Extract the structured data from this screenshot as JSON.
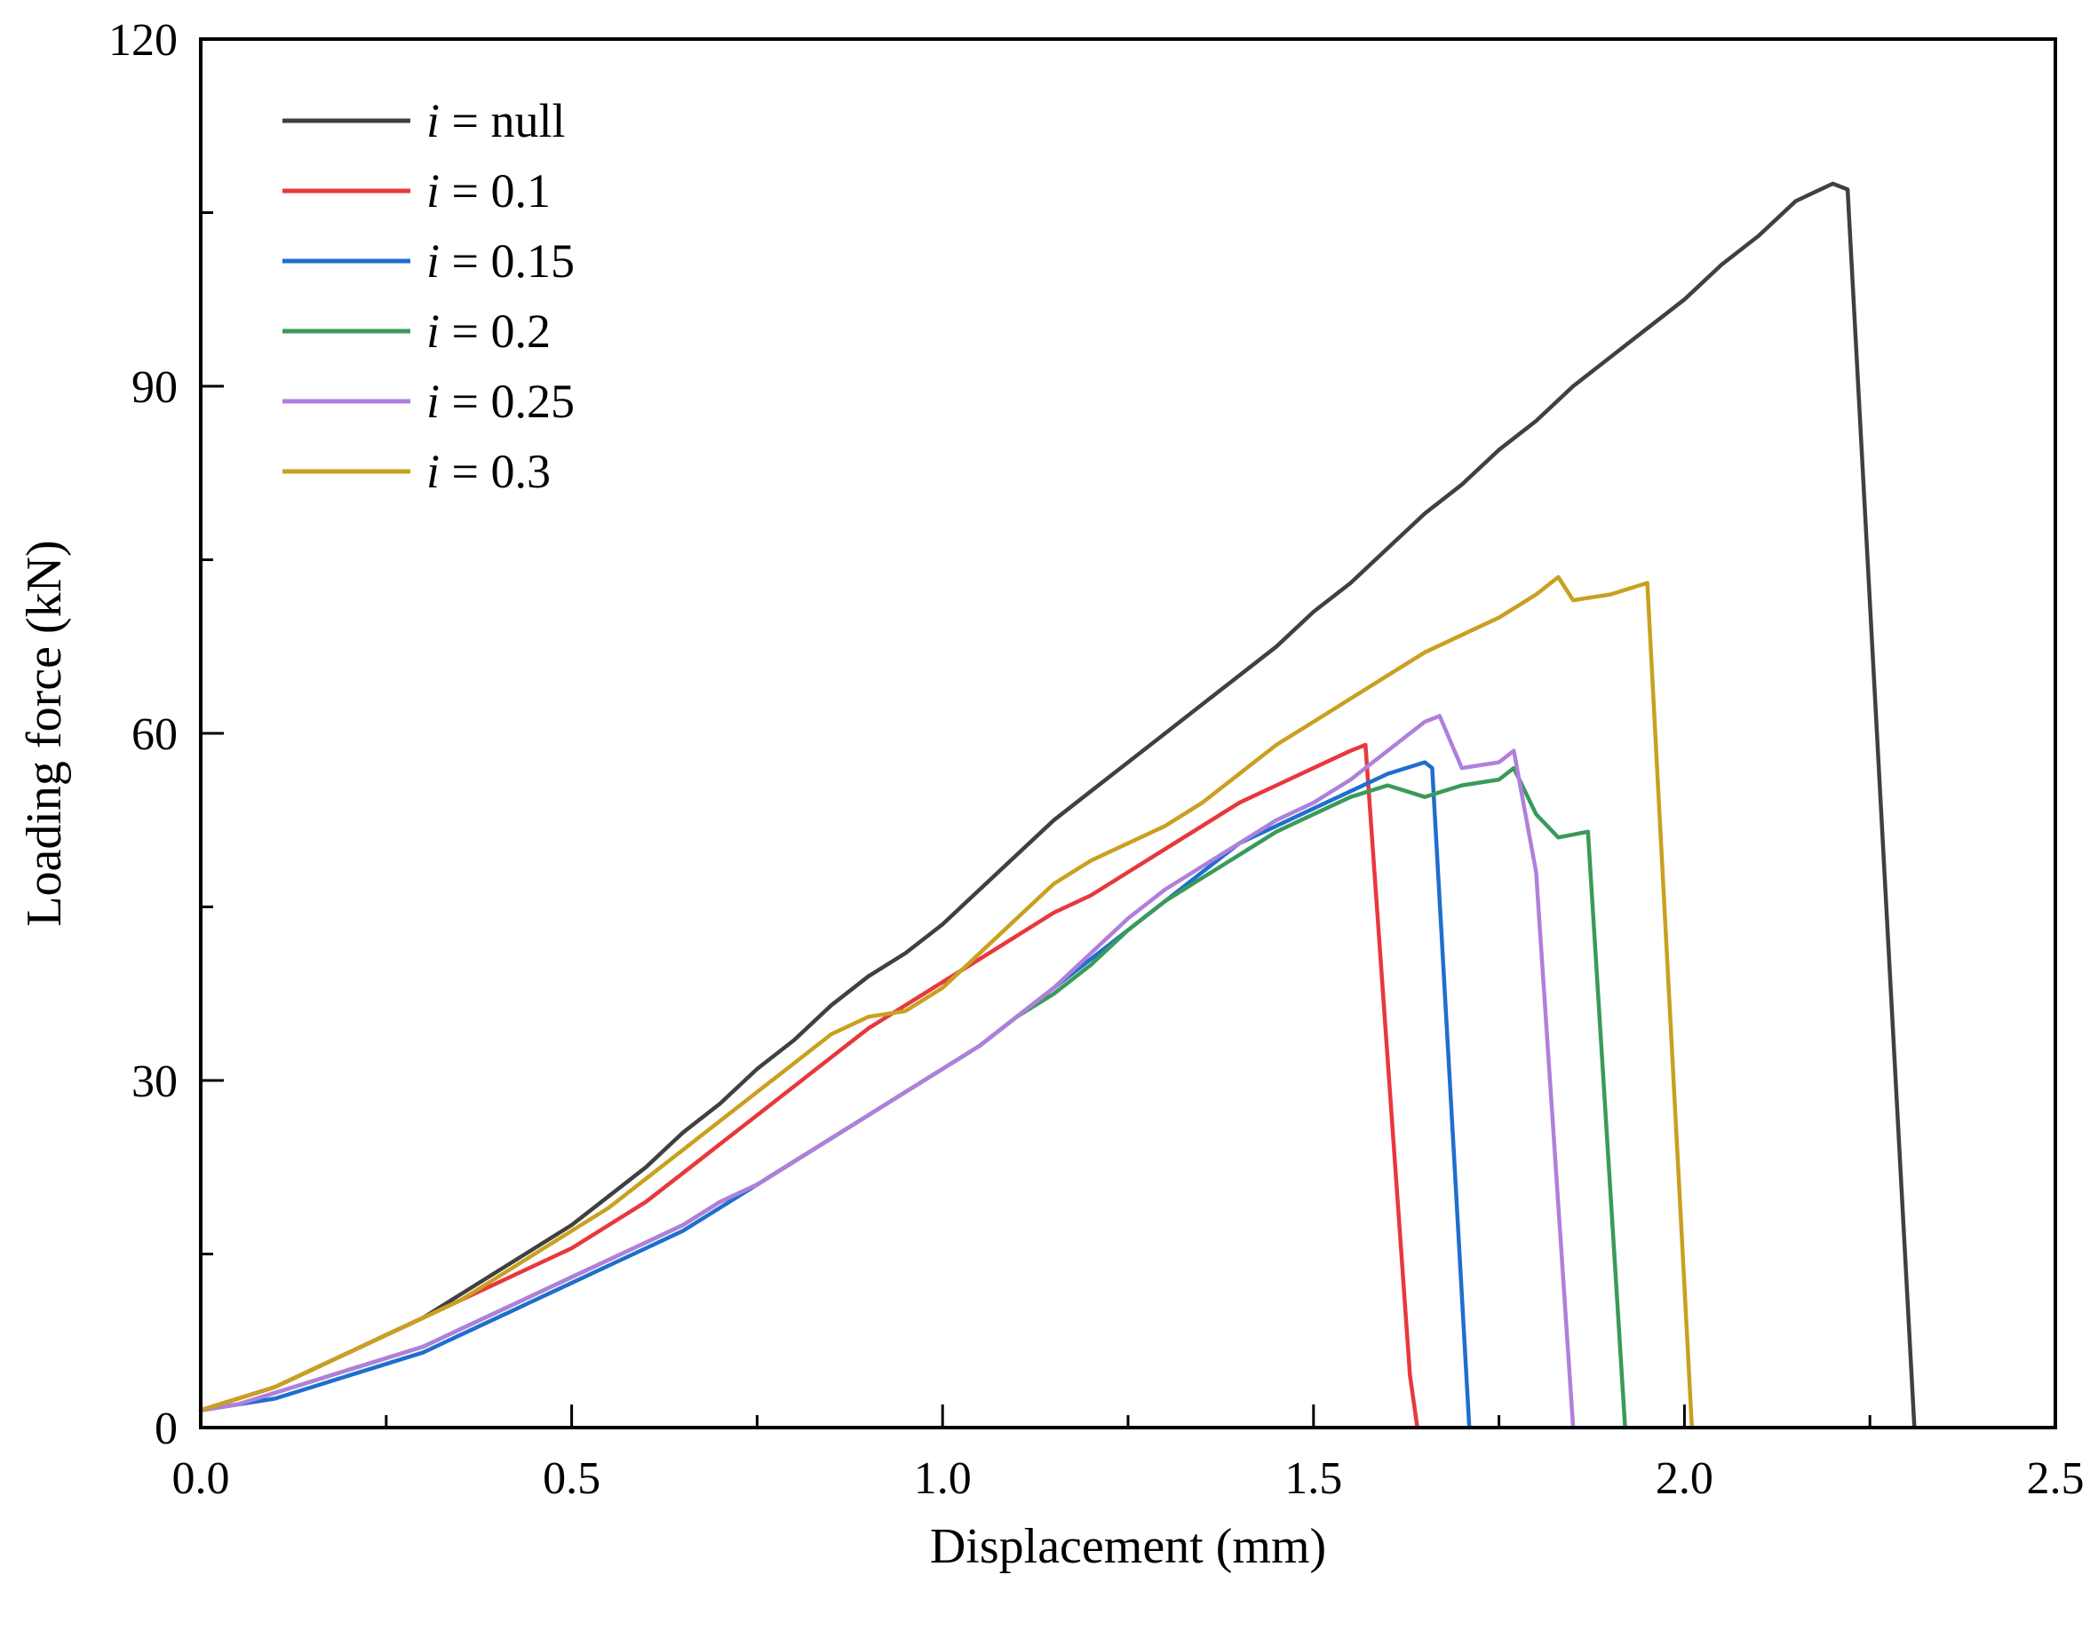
{
  "chart_data": {
    "type": "line",
    "title": "",
    "xlabel": "Displacement (mm)",
    "ylabel": "Loading force (kN)",
    "xlim": [
      0.0,
      2.5
    ],
    "ylim": [
      0,
      120
    ],
    "xticks": [
      0.0,
      0.5,
      1.0,
      1.5,
      2.0,
      2.5
    ],
    "xtick_labels": [
      "0.0",
      "0.5",
      "1.0",
      "1.5",
      "2.0",
      "2.5"
    ],
    "yticks": [
      0,
      30,
      60,
      90,
      120
    ],
    "ytick_labels": [
      "0",
      "30",
      "60",
      "90",
      "120"
    ],
    "grid": false,
    "legend_position": "top-left",
    "legend_var": "i",
    "legend_eq": " = ",
    "series": [
      {
        "name": "i = null",
        "value_label": "null",
        "color": "#404040",
        "x": [
          0.0,
          0.05,
          0.1,
          0.15,
          0.2,
          0.25,
          0.3,
          0.35,
          0.4,
          0.45,
          0.5,
          0.55,
          0.6,
          0.65,
          0.7,
          0.75,
          0.8,
          0.85,
          0.9,
          0.95,
          1.0,
          1.05,
          1.1,
          1.15,
          1.2,
          1.25,
          1.3,
          1.35,
          1.4,
          1.45,
          1.5,
          1.55,
          1.6,
          1.65,
          1.7,
          1.75,
          1.8,
          1.85,
          1.9,
          1.95,
          2.0,
          2.05,
          2.1,
          2.15,
          2.2,
          2.22,
          2.31
        ],
        "y": [
          1.5,
          2.5,
          3.5,
          5.0,
          6.5,
          8.0,
          9.5,
          11.5,
          13.5,
          15.5,
          17.5,
          20.0,
          22.5,
          25.5,
          28.0,
          31.0,
          33.5,
          36.5,
          39.0,
          41.0,
          43.5,
          46.5,
          49.5,
          52.5,
          55.0,
          57.5,
          60.0,
          62.5,
          65.0,
          67.5,
          70.5,
          73.0,
          76.0,
          79.0,
          81.5,
          84.5,
          87.0,
          90.0,
          92.5,
          95.0,
          97.5,
          100.5,
          103.0,
          106.0,
          107.5,
          107.0,
          0
        ]
      },
      {
        "name": "i = 0.1",
        "value_label": "0.1",
        "color": "#e8383d",
        "x": [
          0.0,
          0.05,
          0.1,
          0.15,
          0.2,
          0.25,
          0.3,
          0.35,
          0.4,
          0.45,
          0.5,
          0.55,
          0.6,
          0.65,
          0.7,
          0.75,
          0.8,
          0.85,
          0.9,
          0.95,
          1.0,
          1.05,
          1.1,
          1.15,
          1.2,
          1.25,
          1.3,
          1.35,
          1.4,
          1.45,
          1.5,
          1.55,
          1.57,
          1.63,
          1.64
        ],
        "y": [
          1.5,
          2.5,
          3.5,
          5.0,
          6.5,
          8.0,
          9.5,
          11.0,
          12.5,
          14.0,
          15.5,
          17.5,
          19.5,
          22.0,
          24.5,
          27.0,
          29.5,
          32.0,
          34.5,
          36.5,
          38.5,
          40.5,
          42.5,
          44.5,
          46.0,
          48.0,
          50.0,
          52.0,
          54.0,
          55.5,
          57.0,
          58.5,
          59.0,
          4.5,
          0
        ]
      },
      {
        "name": "i = 0.15",
        "value_label": "0.15",
        "color": "#1e6fce",
        "x": [
          0.0,
          0.05,
          0.1,
          0.15,
          0.2,
          0.25,
          0.3,
          0.35,
          0.4,
          0.45,
          0.5,
          0.55,
          0.6,
          0.65,
          0.7,
          0.75,
          0.8,
          0.85,
          0.9,
          0.95,
          1.0,
          1.05,
          1.1,
          1.15,
          1.2,
          1.25,
          1.3,
          1.35,
          1.4,
          1.45,
          1.5,
          1.55,
          1.6,
          1.65,
          1.66,
          1.71
        ],
        "y": [
          1.5,
          2.0,
          2.5,
          3.5,
          4.5,
          5.5,
          6.5,
          8.0,
          9.5,
          11.0,
          12.5,
          14.0,
          15.5,
          17.0,
          19.0,
          21.0,
          23.0,
          25.0,
          27.0,
          29.0,
          31.0,
          33.0,
          35.5,
          38.0,
          40.5,
          43.0,
          45.5,
          48.0,
          50.5,
          52.0,
          53.5,
          55.0,
          56.5,
          57.5,
          57.0,
          0
        ]
      },
      {
        "name": "i = 0.2",
        "value_label": "0.2",
        "color": "#3a9a5a",
        "x": [
          0.0,
          0.05,
          0.1,
          0.15,
          0.2,
          0.25,
          0.3,
          0.35,
          0.4,
          0.45,
          0.5,
          0.55,
          0.6,
          0.65,
          0.7,
          0.75,
          0.8,
          0.85,
          0.9,
          0.95,
          1.0,
          1.05,
          1.1,
          1.15,
          1.2,
          1.25,
          1.3,
          1.35,
          1.4,
          1.45,
          1.5,
          1.55,
          1.6,
          1.65,
          1.7,
          1.75,
          1.77,
          1.8,
          1.83,
          1.87,
          1.92
        ],
        "y": [
          1.5,
          2.0,
          3.0,
          4.0,
          5.0,
          6.0,
          7.0,
          8.5,
          10.0,
          11.5,
          13.0,
          14.5,
          16.0,
          17.5,
          19.5,
          21.0,
          23.0,
          25.0,
          27.0,
          29.0,
          31.0,
          33.0,
          35.5,
          37.5,
          40.0,
          43.0,
          45.5,
          47.5,
          49.5,
          51.5,
          53.0,
          54.5,
          55.5,
          54.5,
          55.5,
          56.0,
          57.0,
          53.0,
          51.0,
          51.5,
          0
        ]
      },
      {
        "name": "i = 0.25",
        "value_label": "0.25",
        "color": "#b07fdc",
        "x": [
          0.0,
          0.05,
          0.1,
          0.15,
          0.2,
          0.25,
          0.3,
          0.35,
          0.4,
          0.45,
          0.5,
          0.55,
          0.6,
          0.65,
          0.7,
          0.75,
          0.8,
          0.85,
          0.9,
          0.95,
          1.0,
          1.05,
          1.1,
          1.15,
          1.2,
          1.25,
          1.3,
          1.35,
          1.4,
          1.45,
          1.5,
          1.55,
          1.6,
          1.65,
          1.67,
          1.7,
          1.75,
          1.77,
          1.8,
          1.85
        ],
        "y": [
          1.5,
          2.0,
          3.0,
          4.0,
          5.0,
          6.0,
          7.0,
          8.5,
          10.0,
          11.5,
          13.0,
          14.5,
          16.0,
          17.5,
          19.5,
          21.0,
          23.0,
          25.0,
          27.0,
          29.0,
          31.0,
          33.0,
          35.5,
          38.0,
          41.0,
          44.0,
          46.5,
          48.5,
          50.5,
          52.5,
          54.0,
          56.0,
          58.5,
          61.0,
          61.5,
          57.0,
          57.5,
          58.5,
          48.0,
          0
        ]
      },
      {
        "name": "i = 0.3",
        "value_label": "0.3",
        "color": "#c9a020",
        "x": [
          0.0,
          0.05,
          0.1,
          0.15,
          0.2,
          0.25,
          0.3,
          0.35,
          0.4,
          0.45,
          0.5,
          0.55,
          0.6,
          0.65,
          0.7,
          0.75,
          0.8,
          0.85,
          0.9,
          0.95,
          1.0,
          1.05,
          1.1,
          1.15,
          1.2,
          1.25,
          1.3,
          1.35,
          1.4,
          1.45,
          1.5,
          1.55,
          1.6,
          1.65,
          1.7,
          1.75,
          1.8,
          1.83,
          1.85,
          1.9,
          1.95,
          2.01
        ],
        "y": [
          1.5,
          2.5,
          3.5,
          5.0,
          6.5,
          8.0,
          9.5,
          11.0,
          13.0,
          15.0,
          17.0,
          19.0,
          21.5,
          24.0,
          26.5,
          29.0,
          31.5,
          34.0,
          35.5,
          36.0,
          38.0,
          41.0,
          44.0,
          47.0,
          49.0,
          50.5,
          52.0,
          54.0,
          56.5,
          59.0,
          61.0,
          63.0,
          65.0,
          67.0,
          68.5,
          70.0,
          72.0,
          73.5,
          71.5,
          72.0,
          73.0,
          0
        ]
      }
    ]
  }
}
